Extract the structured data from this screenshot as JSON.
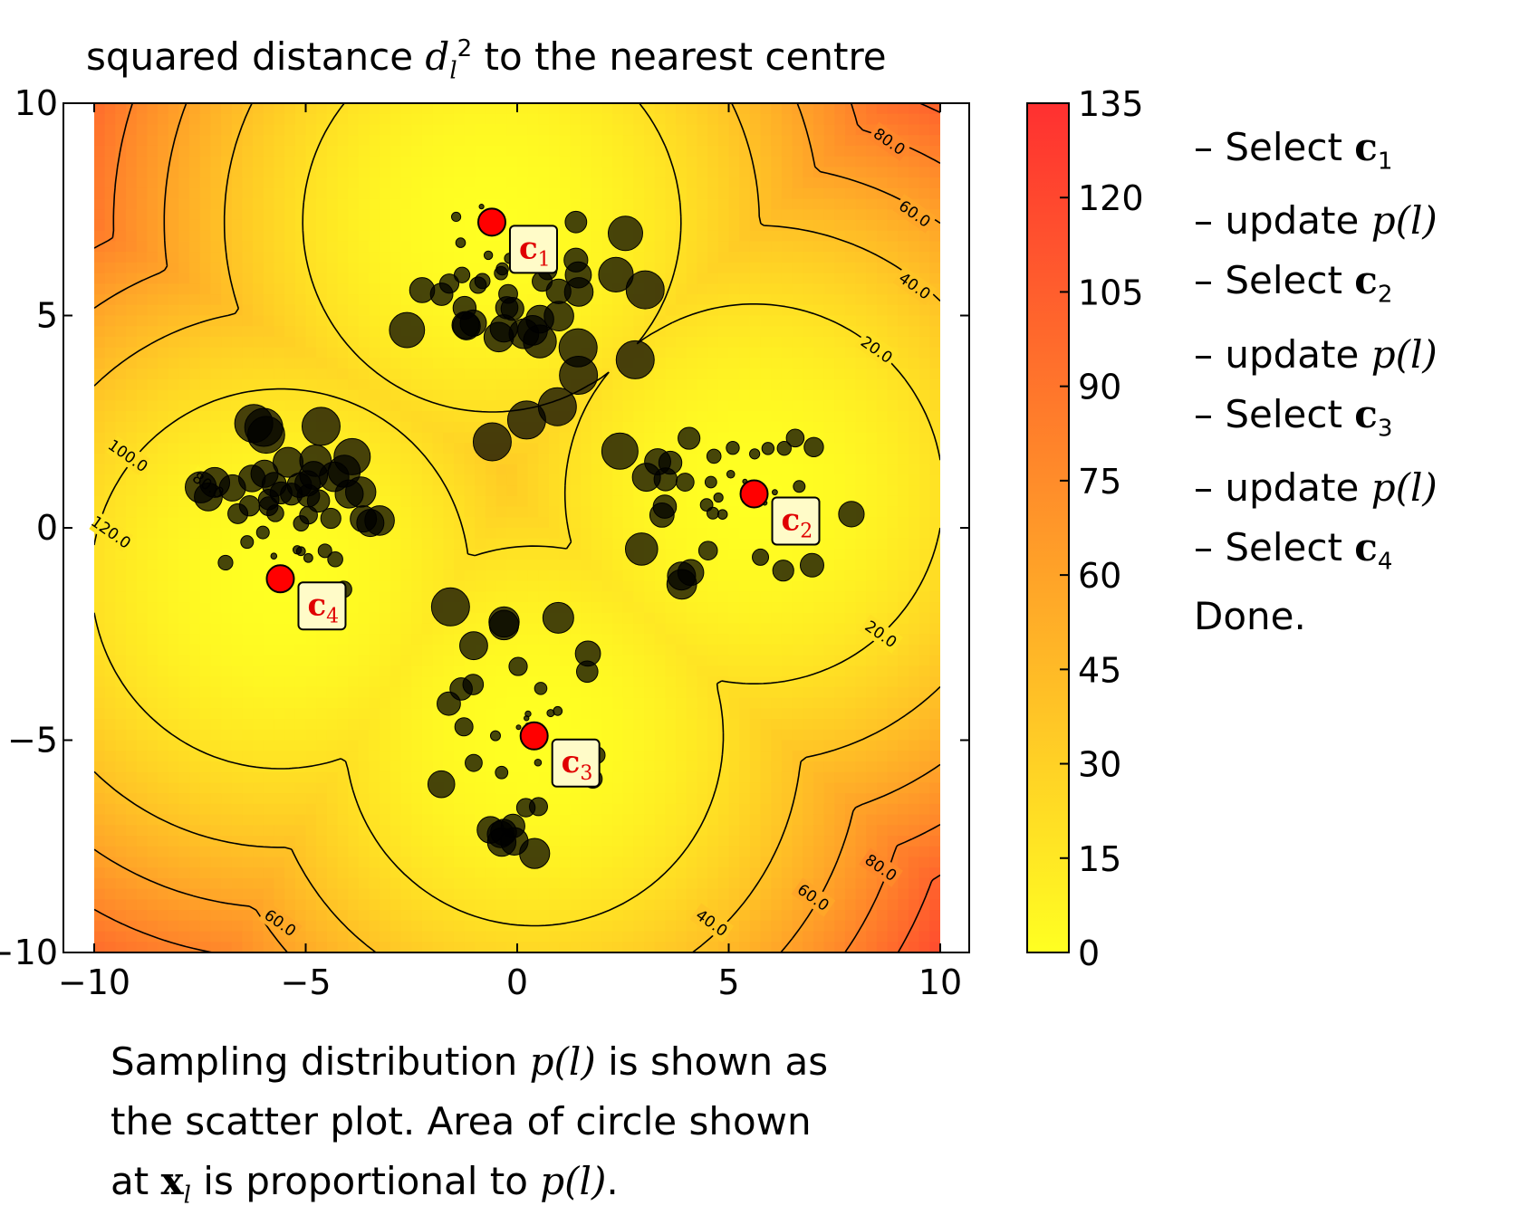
{
  "chart_data": {
    "type": "heatmap",
    "title_parts": [
      "squared distance ",
      "d",
      "l",
      "2",
      " to the nearest centre"
    ],
    "xlim": [
      -10,
      10
    ],
    "ylim": [
      -10,
      10
    ],
    "x_ticks": [
      "−10",
      "−5",
      "0",
      "5",
      "10"
    ],
    "y_ticks": [
      "10",
      "5",
      "0",
      "−5",
      "−10"
    ],
    "colorbar": {
      "range": [
        0,
        135
      ],
      "ticks": [
        "135",
        "120",
        "105",
        "90",
        "75",
        "60",
        "45",
        "30",
        "15",
        "0"
      ],
      "colors": [
        "#ffff22",
        "#ff3030"
      ]
    },
    "contour_levels": [
      20,
      40,
      60,
      80,
      100,
      120
    ],
    "contour_labels": [
      {
        "text": "80.0",
        "x": 8.8,
        "y": 9.1
      },
      {
        "text": "60.0",
        "x": 9.4,
        "y": 7.4
      },
      {
        "text": "40.0",
        "x": 9.4,
        "y": 5.7
      },
      {
        "text": "20.0",
        "x": 8.5,
        "y": 4.2
      },
      {
        "text": "100.0",
        "x": -9.2,
        "y": 1.7
      },
      {
        "text": "80.0",
        "x": -7.3,
        "y": 1.0
      },
      {
        "text": "120.0",
        "x": -9.6,
        "y": -0.1
      },
      {
        "text": "20.0",
        "x": 8.6,
        "y": -2.5
      },
      {
        "text": "60.0",
        "x": -5.6,
        "y": -9.3
      },
      {
        "text": "40.0",
        "x": 4.6,
        "y": -9.3
      },
      {
        "text": "60.0",
        "x": 7.0,
        "y": -8.7
      },
      {
        "text": "80.0",
        "x": 8.6,
        "y": -8.0
      }
    ],
    "centres": [
      {
        "name": "c",
        "sub": "1",
        "x": -0.6,
        "y": 7.2
      },
      {
        "name": "c",
        "sub": "2",
        "x": 5.6,
        "y": 0.8
      },
      {
        "name": "c",
        "sub": "3",
        "x": 0.4,
        "y": -4.9
      },
      {
        "name": "c",
        "sub": "4",
        "x": -5.6,
        "y": -1.2
      }
    ],
    "point_clusters": [
      {
        "cx": -0.2,
        "cy": 5.3,
        "spread_x": 1.1,
        "spread_y": 1.1,
        "count": 45
      },
      {
        "cx": 5.3,
        "cy": 0.3,
        "spread_x": 1.1,
        "spread_y": 1.0,
        "count": 40
      },
      {
        "cx": 0.1,
        "cy": -4.7,
        "spread_x": 0.9,
        "spread_y": 1.2,
        "count": 38
      },
      {
        "cx": -5.2,
        "cy": 0.2,
        "spread_x": 1.0,
        "spread_y": 1.0,
        "count": 48
      }
    ]
  },
  "steps": [
    {
      "text": "– Select ",
      "bold": "c",
      "sub": "1",
      "math": ""
    },
    {
      "text": "– update ",
      "bold": "",
      "sub": "",
      "math": "p(l)"
    },
    {
      "text": "– Select ",
      "bold": "c",
      "sub": "2",
      "math": ""
    },
    {
      "text": "– update ",
      "bold": "",
      "sub": "",
      "math": "p(l)"
    },
    {
      "text": "– Select ",
      "bold": "c",
      "sub": "3",
      "math": ""
    },
    {
      "text": "– update ",
      "bold": "",
      "sub": "",
      "math": "p(l)"
    },
    {
      "text": "– Select ",
      "bold": "c",
      "sub": "4",
      "math": ""
    }
  ],
  "done": "Done.",
  "caption": {
    "line1_a": "Sampling distribution ",
    "line1_math": "p(l)",
    "line1_b": " is shown as",
    "line2": "the scatter plot.  Area of circle shown",
    "line3_a": "at ",
    "line3_bold": "x",
    "line3_sub": "l",
    "line3_b": " is proportional to ",
    "line3_math": "p(l)",
    "line3_c": "."
  }
}
